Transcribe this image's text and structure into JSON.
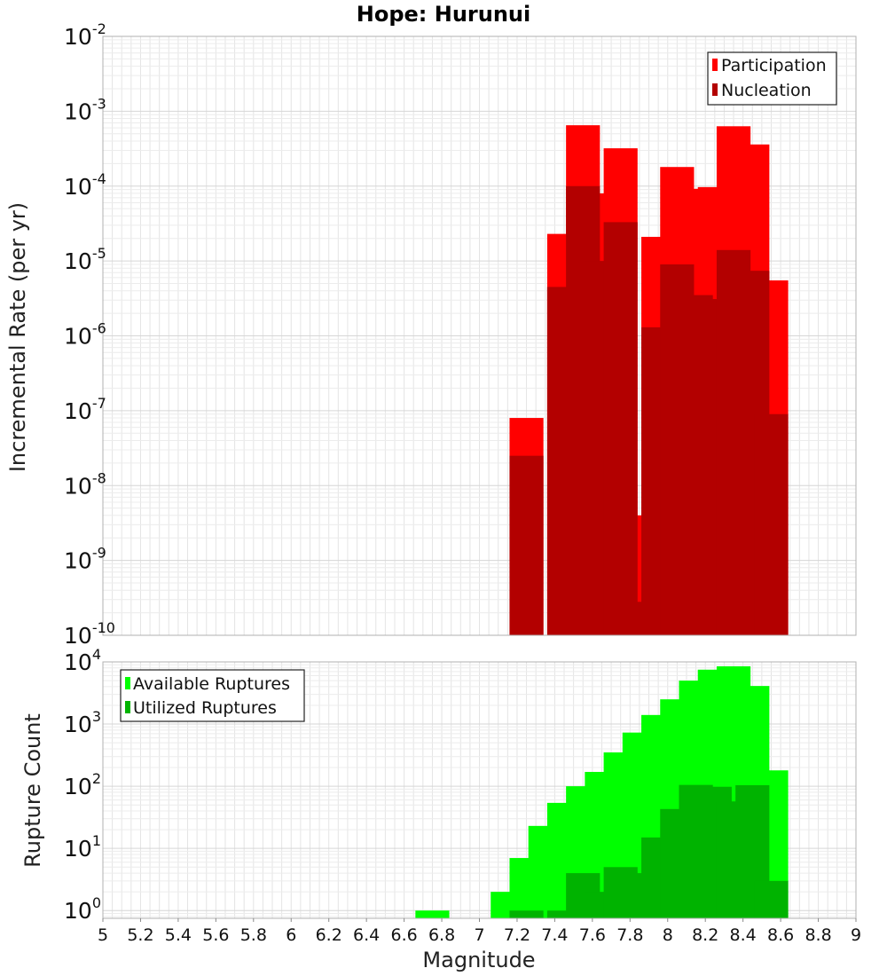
{
  "chart_data": [
    {
      "type": "bar",
      "title": "Hope: Hurunui",
      "xlabel": "Magnitude",
      "ylabel": "Incremental Rate (per yr)",
      "xlim": [
        5,
        9
      ],
      "ylim": [
        1e-10,
        0.01
      ],
      "yscale": "log",
      "grid": true,
      "legend_position": "top-right",
      "x": [
        7.25,
        7.35,
        7.45,
        7.55,
        7.65,
        7.75,
        7.85,
        7.95,
        8.05,
        8.15,
        8.25,
        8.35,
        8.45,
        8.55
      ],
      "series": [
        {
          "name": "Participation",
          "color": "#ff0000",
          "values": [
            8e-08,
            null,
            2.3e-05,
            0.00065,
            8e-05,
            0.00032,
            4e-09,
            2.1e-05,
            0.00018,
            9.2e-05,
            9.7e-05,
            0.00063,
            0.00036,
            5.5e-06
          ]
        },
        {
          "name": "Nucleation",
          "color": "#b30000",
          "values": [
            2.5e-08,
            null,
            4.5e-06,
            0.0001,
            1e-05,
            3.3e-05,
            2.8e-10,
            1.3e-06,
            9e-06,
            3.5e-06,
            3.1e-06,
            1.4e-05,
            7.4e-06,
            9e-08
          ]
        }
      ]
    },
    {
      "type": "bar",
      "title": "",
      "xlabel": "Magnitude",
      "ylabel": "Rupture Count",
      "xlim": [
        5,
        9
      ],
      "ylim": [
        0.75,
        10000
      ],
      "yscale": "log",
      "grid": true,
      "legend_position": "top-left",
      "x": [
        6.75,
        7.15,
        7.25,
        7.35,
        7.45,
        7.55,
        7.65,
        7.75,
        7.85,
        7.95,
        8.05,
        8.15,
        8.25,
        8.35,
        8.45,
        8.55
      ],
      "series": [
        {
          "name": "Available Ruptures",
          "color": "#00ff00",
          "values": [
            1,
            2,
            7,
            23,
            54,
            100,
            170,
            350,
            730,
            1400,
            2500,
            5000,
            7500,
            8500,
            4100,
            180
          ]
        },
        {
          "name": "Utilized Ruptures",
          "color": "#00b300",
          "values": [
            null,
            null,
            1,
            null,
            1,
            4,
            2,
            5,
            4,
            15,
            43,
            105,
            98,
            57,
            104,
            3
          ]
        }
      ]
    }
  ],
  "x_ticks": [
    "5",
    "5.2",
    "5.4",
    "5.6",
    "5.8",
    "6",
    "6.2",
    "6.4",
    "6.6",
    "6.8",
    "7",
    "7.2",
    "7.4",
    "7.6",
    "7.8",
    "8",
    "8.2",
    "8.4",
    "8.6",
    "8.8",
    "9"
  ],
  "top_y_exponents": [
    "-2",
    "-3",
    "-4",
    "-5",
    "-6",
    "-7",
    "-8",
    "-9",
    "-10"
  ],
  "bottom_y_exponents": [
    "4",
    "3",
    "2",
    "1",
    "0"
  ],
  "log_base": "10"
}
